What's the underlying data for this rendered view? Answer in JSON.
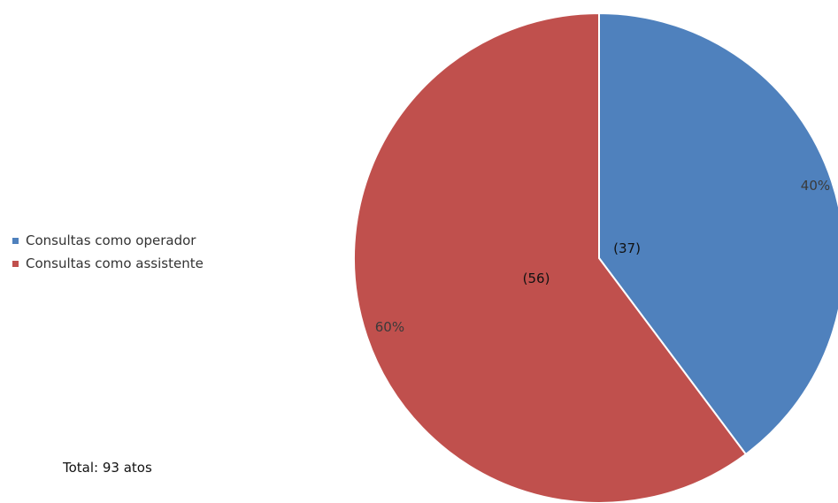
{
  "chart_data": {
    "type": "pie",
    "categories": [
      "Consultas como operador",
      "Consultas como assistente"
    ],
    "values": [
      37,
      56
    ],
    "percent_labels": [
      "40%",
      "60%"
    ],
    "count_labels": [
      "(37)",
      "(56)"
    ],
    "colors": [
      "#4F81BD",
      "#C0504D"
    ],
    "legend_position": "left",
    "start_angle": "top",
    "direction": "clockwise"
  },
  "annotation": {
    "total": "Total: 93 atos"
  }
}
